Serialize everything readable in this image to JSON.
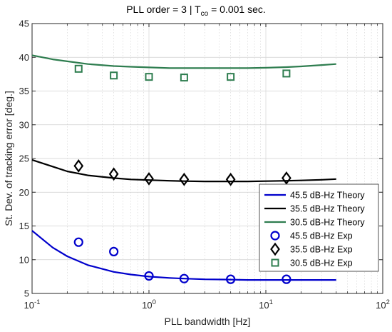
{
  "chart_data": {
    "type": "line",
    "title_prefix": "PLL order = 3  |  T",
    "title_sub": "co",
    "title_suffix": " = 0.001 sec.",
    "xlabel": "PLL bandwidth [Hz]",
    "ylabel": "St. Dev. of tracking error [deg.]",
    "x_scale": "log",
    "xlim": [
      0.1,
      100
    ],
    "ylim": [
      5,
      45
    ],
    "x_ticks": [
      0.1,
      1,
      10,
      100
    ],
    "x_tick_labels": [
      {
        "base": "10",
        "exp": "-1"
      },
      {
        "base": "10",
        "exp": "0"
      },
      {
        "base": "10",
        "exp": "1"
      },
      {
        "base": "10",
        "exp": "2"
      }
    ],
    "y_ticks": [
      5,
      10,
      15,
      20,
      25,
      30,
      35,
      40,
      45
    ],
    "y_tick_labels": [
      "5",
      "10",
      "15",
      "20",
      "25",
      "30",
      "35",
      "40",
      "45"
    ],
    "grid": true,
    "legend_position": "bottom-right",
    "theory_x": [
      0.1,
      0.15,
      0.2,
      0.3,
      0.5,
      0.7,
      1,
      1.5,
      2,
      3,
      5,
      7,
      10,
      15,
      20,
      30,
      40
    ],
    "series": [
      {
        "name": "45.5 dB-Hz Theory",
        "kind": "line",
        "color": "#0000cc",
        "y": [
          14.3,
          11.8,
          10.5,
          9.2,
          8.2,
          7.8,
          7.5,
          7.3,
          7.2,
          7.1,
          7.05,
          7.0,
          7.0,
          7.0,
          7.0,
          7.0,
          7.0
        ]
      },
      {
        "name": "35.5 dB-Hz Theory",
        "kind": "line",
        "color": "#000000",
        "y": [
          24.8,
          23.8,
          23.1,
          22.5,
          22.1,
          21.9,
          21.8,
          21.7,
          21.65,
          21.6,
          21.6,
          21.6,
          21.65,
          21.7,
          21.75,
          21.85,
          21.95
        ]
      },
      {
        "name": "30.5 dB-Hz Theory",
        "kind": "line",
        "color": "#2e7d4f",
        "y": [
          40.3,
          39.7,
          39.4,
          39.0,
          38.7,
          38.6,
          38.5,
          38.4,
          38.4,
          38.4,
          38.4,
          38.4,
          38.45,
          38.55,
          38.65,
          38.85,
          39.0
        ]
      },
      {
        "name": "45.5 dB-Hz Exp",
        "kind": "marker",
        "marker": "circle",
        "color": "#0000cc",
        "x": [
          0.25,
          0.5,
          1,
          2,
          5,
          15
        ],
        "y": [
          12.6,
          11.2,
          7.6,
          7.2,
          7.1,
          7.1
        ]
      },
      {
        "name": "35.5 dB-Hz Exp",
        "kind": "marker",
        "marker": "diamond",
        "color": "#000000",
        "x": [
          0.25,
          0.5,
          1,
          2,
          5,
          15
        ],
        "y": [
          23.9,
          22.7,
          22.0,
          21.9,
          21.9,
          22.1
        ]
      },
      {
        "name": "30.5 dB-Hz Exp",
        "kind": "marker",
        "marker": "square",
        "color": "#2e7d4f",
        "x": [
          0.25,
          0.5,
          1,
          2,
          5,
          15
        ],
        "y": [
          38.3,
          37.3,
          37.1,
          37.0,
          37.1,
          37.6
        ]
      }
    ]
  }
}
